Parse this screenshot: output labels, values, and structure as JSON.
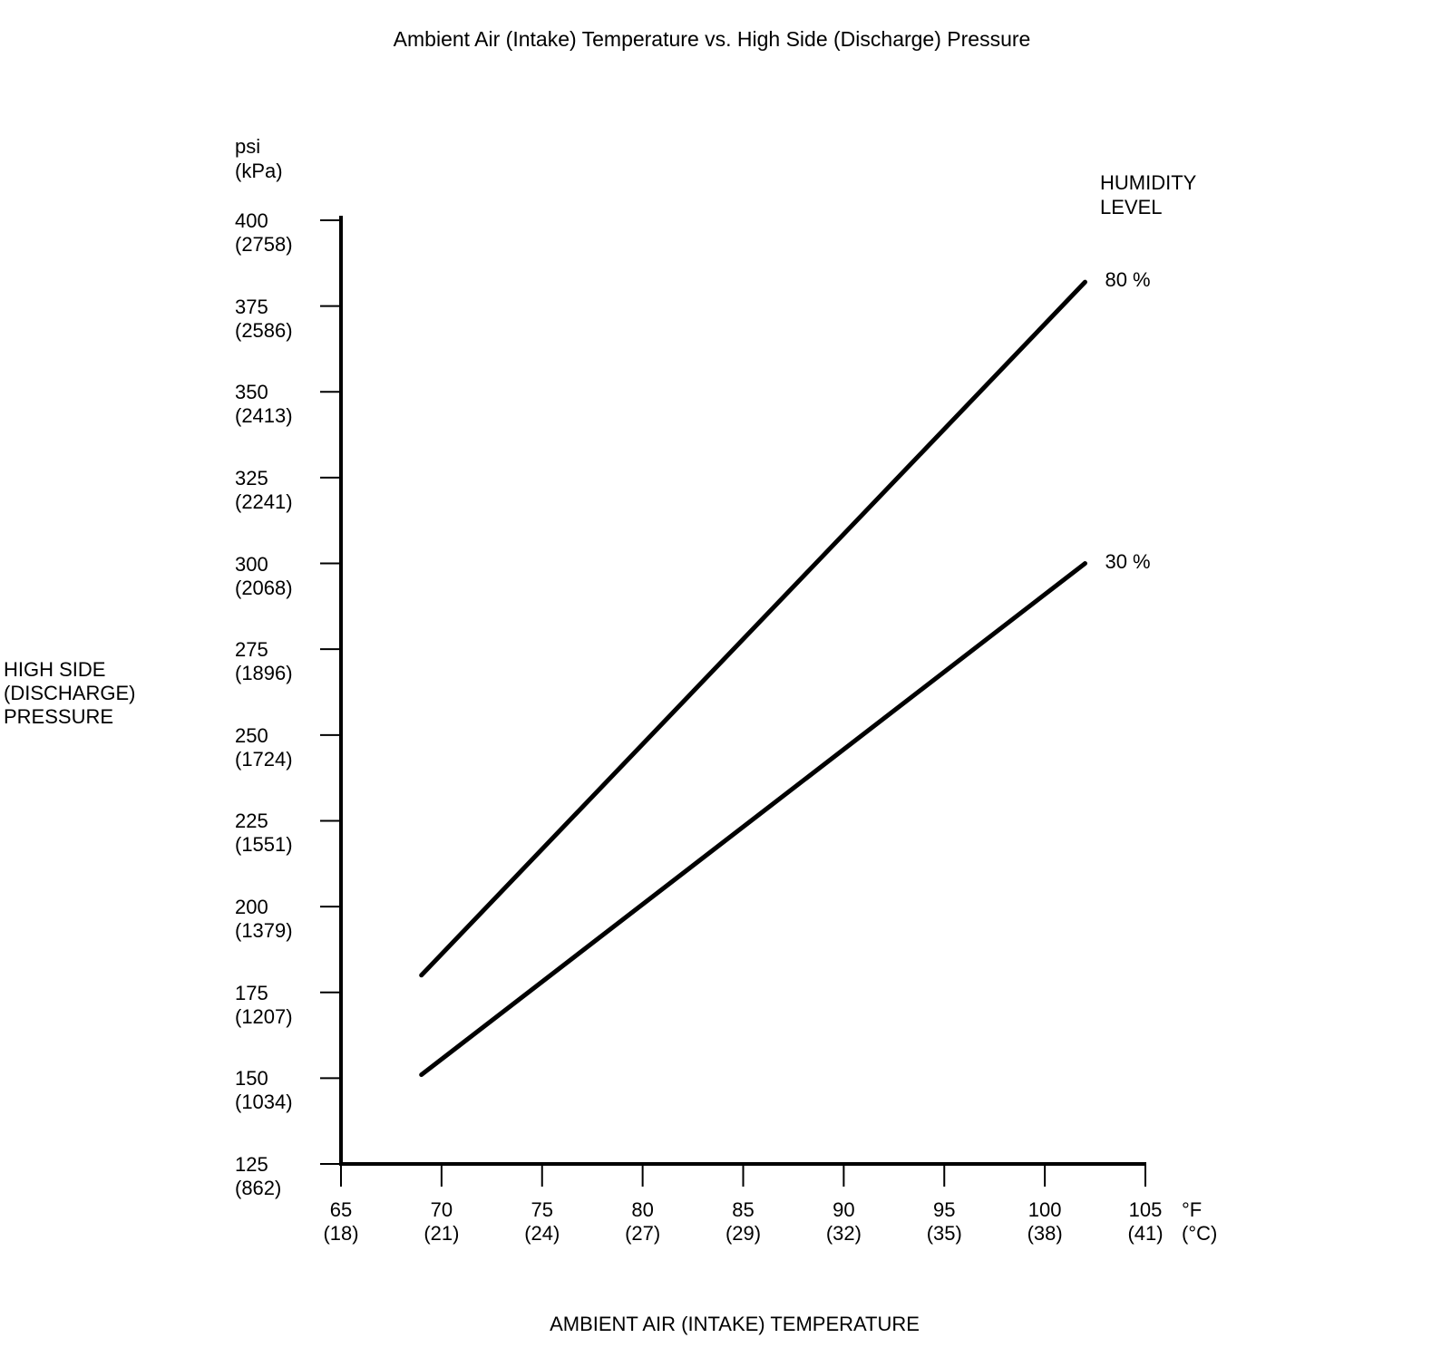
{
  "title": "Ambient Air (Intake) Temperature vs. High Side (Discharge) Pressure",
  "y_axis": {
    "unit_label": "psi\n(kPa)",
    "title": "HIGH SIDE\n(DISCHARGE)\nPRESSURE"
  },
  "x_axis": {
    "unit_label": "°F\n(°C)",
    "title": "AMBIENT AIR (INTAKE) TEMPERATURE"
  },
  "legend": {
    "title": "HUMIDITY\nLEVEL"
  },
  "colors": {
    "foreground": "#000000",
    "background": "#ffffff"
  },
  "chart_data": {
    "type": "line",
    "title": "Ambient Air (Intake) Temperature vs. High Side (Discharge) Pressure",
    "xlabel": "AMBIENT AIR (INTAKE) TEMPERATURE",
    "ylabel": "HIGH SIDE (DISCHARGE) PRESSURE",
    "x_unit": "°F (°C)",
    "y_unit": "psi (kPa)",
    "xlim": [
      65,
      105
    ],
    "ylim": [
      125,
      400
    ],
    "grid": false,
    "legend_title": "HUMIDITY LEVEL",
    "legend_position": "top-right",
    "x_ticks": [
      {
        "f": 65,
        "c": 18
      },
      {
        "f": 70,
        "c": 21
      },
      {
        "f": 75,
        "c": 24
      },
      {
        "f": 80,
        "c": 27
      },
      {
        "f": 85,
        "c": 29
      },
      {
        "f": 90,
        "c": 32
      },
      {
        "f": 95,
        "c": 35
      },
      {
        "f": 100,
        "c": 38
      },
      {
        "f": 105,
        "c": 41
      }
    ],
    "y_ticks": [
      {
        "psi": 400,
        "kpa": 2758
      },
      {
        "psi": 375,
        "kpa": 2586
      },
      {
        "psi": 350,
        "kpa": 2413
      },
      {
        "psi": 325,
        "kpa": 2241
      },
      {
        "psi": 300,
        "kpa": 2068
      },
      {
        "psi": 275,
        "kpa": 1896
      },
      {
        "psi": 250,
        "kpa": 1724
      },
      {
        "psi": 225,
        "kpa": 1551
      },
      {
        "psi": 200,
        "kpa": 1379
      },
      {
        "psi": 175,
        "kpa": 1207
      },
      {
        "psi": 150,
        "kpa": 1034
      },
      {
        "psi": 125,
        "kpa": 862
      }
    ],
    "series": [
      {
        "name": "80 %",
        "points_f_psi": [
          [
            69,
            180
          ],
          [
            102,
            382
          ]
        ]
      },
      {
        "name": "30 %",
        "points_f_psi": [
          [
            69,
            151
          ],
          [
            102,
            300
          ]
        ]
      }
    ]
  }
}
